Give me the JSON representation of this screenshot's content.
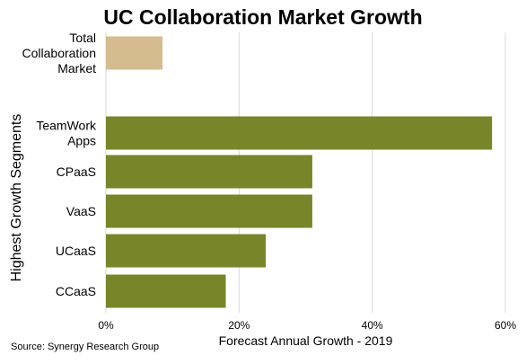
{
  "chart_data": {
    "type": "bar",
    "orientation": "horizontal",
    "title": "UC Collaboration Market Growth",
    "xlabel": "Forecast Annual Growth - 2019",
    "ylabel": "Highest Growth Segments",
    "xlim": [
      0,
      60
    ],
    "xticks": [
      "0%",
      "20%",
      "40%",
      "60%"
    ],
    "grid": true,
    "categories": [
      [
        "Total",
        "Collaboration",
        "Market"
      ],
      [
        "TeamWork",
        "Apps"
      ],
      [
        "CPaaS"
      ],
      [
        "VaaS"
      ],
      [
        "UCaaS"
      ],
      [
        "CCaaS"
      ]
    ],
    "values": [
      8.5,
      58,
      31,
      31,
      24,
      18
    ],
    "colors": [
      "#D4BC8E",
      "#788528",
      "#788528",
      "#788528",
      "#788528",
      "#788528"
    ],
    "source": "Source: Synergy Research Group"
  }
}
